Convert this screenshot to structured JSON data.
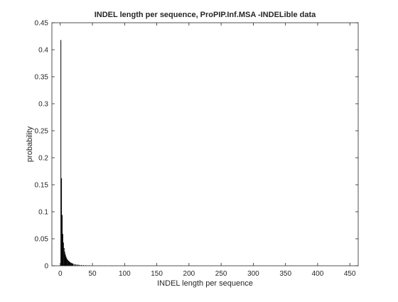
{
  "chart_data": {
    "type": "bar",
    "title": "INDEL length per sequence, ProPIP.Inf.MSA -INDELible data",
    "xlabel": "INDEL length per sequence",
    "ylabel": "probability",
    "xlim": [
      -13,
      463
    ],
    "ylim": [
      0,
      0.45
    ],
    "x_ticks": [
      0,
      50,
      100,
      150,
      200,
      250,
      300,
      350,
      400,
      450
    ],
    "y_ticks": [
      0,
      0.05,
      0.1,
      0.15,
      0.2,
      0.25,
      0.3,
      0.35,
      0.4,
      0.45
    ],
    "x_tick_labels": [
      "0",
      "50",
      "100",
      "150",
      "200",
      "250",
      "300",
      "350",
      "400",
      "450"
    ],
    "y_tick_labels": [
      "0",
      "0.05",
      "0.1",
      "0.15",
      "0.2",
      "0.25",
      "0.3",
      "0.35",
      "0.4",
      "0.45"
    ],
    "grid": false,
    "bar_color": "#000000",
    "x": [
      1,
      2,
      3,
      4,
      5,
      6,
      7,
      8,
      9,
      10,
      11,
      12,
      13,
      14,
      15,
      16,
      17,
      18,
      19,
      20,
      22,
      24,
      26,
      28,
      30,
      33,
      36,
      40,
      45,
      50,
      60,
      70,
      80,
      100
    ],
    "values": [
      0.418,
      0.162,
      0.094,
      0.059,
      0.043,
      0.033,
      0.026,
      0.021,
      0.017,
      0.014,
      0.012,
      0.0105,
      0.009,
      0.008,
      0.007,
      0.006,
      0.0054,
      0.0048,
      0.0043,
      0.0038,
      0.0032,
      0.0027,
      0.0023,
      0.002,
      0.0017,
      0.0014,
      0.0012,
      0.001,
      0.0008,
      0.0006,
      0.0004,
      0.0003,
      0.0002,
      0.0001
    ]
  }
}
